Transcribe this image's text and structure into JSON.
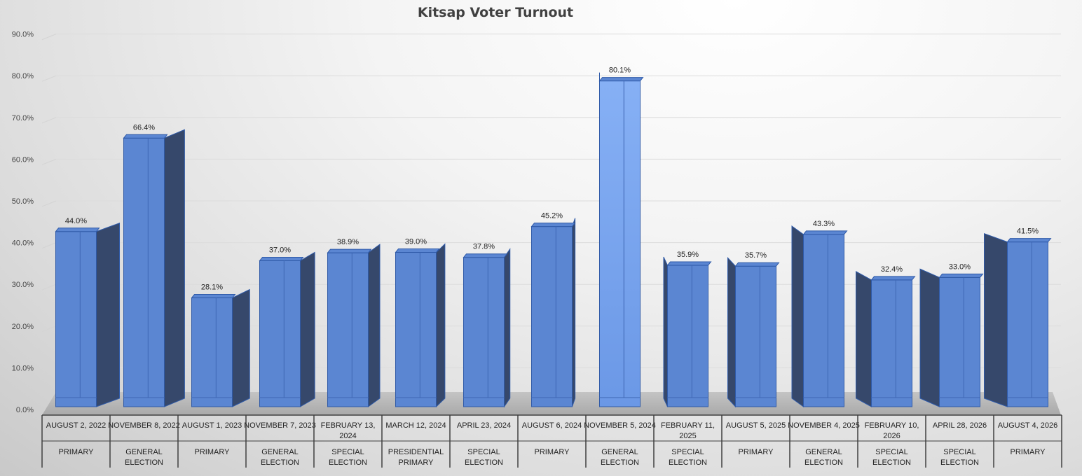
{
  "chart_data": {
    "type": "bar",
    "title": "Kitsap Voter Turnout",
    "xlabel": "",
    "ylabel": "",
    "ylim": [
      0,
      90
    ],
    "yticks": [
      "0.0%",
      "10.0%",
      "20.0%",
      "30.0%",
      "40.0%",
      "50.0%",
      "60.0%",
      "70.0%",
      "80.0%",
      "90.0%"
    ],
    "grid": true,
    "legend": "none",
    "colors": {
      "bar_front": "#5b86d2",
      "bar_highlight": "#7aa7f0",
      "bar_side": "#36486b",
      "bar_edge": "#2f5aa8",
      "floor": "#b9b9b9"
    },
    "categories": [
      {
        "date": "AUGUST 2, 2022",
        "type": "PRIMARY"
      },
      {
        "date": "NOVEMBER 8, 2022",
        "type": "GENERAL ELECTION"
      },
      {
        "date": "AUGUST 1, 2023",
        "type": "PRIMARY"
      },
      {
        "date": "NOVEMBER 7, 2023",
        "type": "GENERAL ELECTION"
      },
      {
        "date": "FEBRUARY 13, 2024",
        "type": "SPECIAL ELECTION"
      },
      {
        "date": "MARCH 12, 2024",
        "type": "PRESIDENTIAL PRIMARY"
      },
      {
        "date": "APRIL 23, 2024",
        "type": "SPECIAL ELECTION"
      },
      {
        "date": "AUGUST 6, 2024",
        "type": "PRIMARY"
      },
      {
        "date": "NOVEMBER 5, 2024",
        "type": "GENERAL ELECTION"
      },
      {
        "date": "FEBRUARY 11, 2025",
        "type": "SPECIAL ELECTION"
      },
      {
        "date": "AUGUST 5, 2025",
        "type": "PRIMARY"
      },
      {
        "date": "NOVEMBER 4, 2025",
        "type": "GENERAL ELECTION"
      },
      {
        "date": "FEBRUARY 10, 2026",
        "type": "SPECIAL ELECTION"
      },
      {
        "date": "APRIL 28, 2026",
        "type": "SPECIAL ELECTION"
      },
      {
        "date": "AUGUST 4, 2026",
        "type": "PRIMARY"
      }
    ],
    "values": [
      44.0,
      66.4,
      28.1,
      37.0,
      38.9,
      39.0,
      37.8,
      45.2,
      80.1,
      35.9,
      35.7,
      43.3,
      32.4,
      33.0,
      41.5
    ],
    "value_labels": [
      "44.0%",
      "66.4%",
      "28.1%",
      "37.0%",
      "38.9%",
      "39.0%",
      "37.8%",
      "45.2%",
      "80.1%",
      "35.9%",
      "35.7%",
      "43.3%",
      "32.4%",
      "33.0%",
      "41.5%"
    ]
  }
}
